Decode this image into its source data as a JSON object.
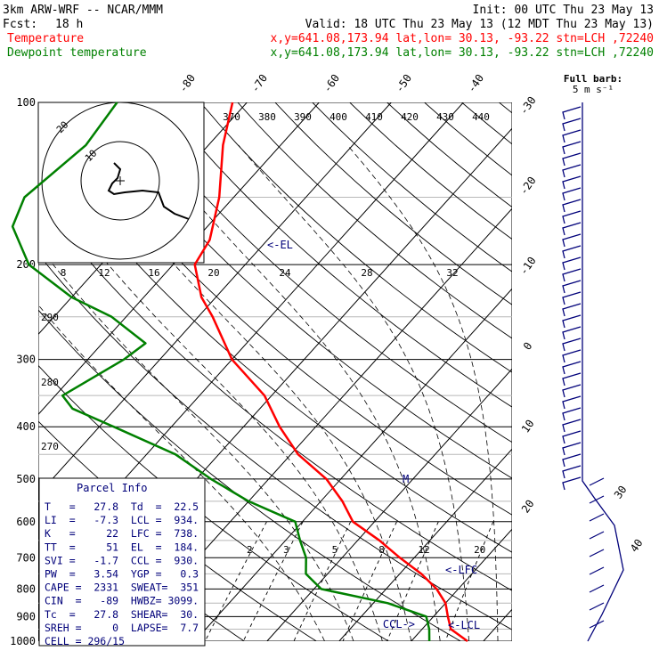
{
  "header": {
    "line1_left": "3km ARW-WRF -- NCAR/MMM",
    "line1_right": "Init: 00 UTC Thu 23 May 13",
    "fcst_label": "Fcst:",
    "fcst_value": "18 h",
    "valid": "Valid: 18 UTC Thu 23 May 13 (12 MDT Thu 23 May 13)",
    "temp_label": "Temperature",
    "temp_info": "x,y=641.08,173.94   lat,lon= 30.13, -93.22  stn=LCH ,72240",
    "dew_label": "Dewpoint temperature",
    "dew_info": "x,y=641.08,173.94   lat,lon= 30.13, -93.22  stn=LCH ,72240",
    "barb_title_1": "Full barb:",
    "barb_title_2": "5 m s⁻¹"
  },
  "colors": {
    "temperature": "#ff0000",
    "dewpoint": "#008000",
    "info": "#00007a",
    "grid": "#000000"
  },
  "chart_data": {
    "type": "line",
    "title": "",
    "xlabel": "",
    "ylabel": "",
    "pressure_levels": [
      100,
      200,
      300,
      400,
      500,
      600,
      700,
      800,
      900,
      1000
    ],
    "pressure_labels": [
      "100",
      "200",
      "300",
      "400",
      "500",
      "600",
      "700",
      "800",
      "900",
      "1000"
    ],
    "ylim": [
      100,
      1000
    ],
    "isotherm_labels": [
      {
        "t": -80,
        "text": "-80"
      },
      {
        "t": -70,
        "text": "-70"
      },
      {
        "t": -60,
        "text": "-60"
      },
      {
        "t": -50,
        "text": "-50"
      },
      {
        "t": -40,
        "text": "-40"
      },
      {
        "t": -30,
        "text": "-30"
      },
      {
        "t": -20,
        "text": "-20"
      },
      {
        "t": -10,
        "text": "-10"
      },
      {
        "t": 0,
        "text": "0"
      },
      {
        "t": 10,
        "text": "10"
      },
      {
        "t": 20,
        "text": "20"
      },
      {
        "t": 30,
        "text": "30"
      },
      {
        "t": 40,
        "text": "40"
      }
    ],
    "theta_labels": [
      "370",
      "380",
      "390",
      "400",
      "410",
      "420",
      "430",
      "440"
    ],
    "mixing_ratio_labels": [
      "2",
      "3",
      "5",
      "8",
      "12",
      "20"
    ],
    "dry_adiabat_labels": [
      "290",
      "280",
      "270"
    ],
    "hodograph": {
      "ring_labels": [
        "10",
        "20"
      ],
      "speed_axis_label": "kts",
      "speed_ticks": [
        "8",
        "12",
        "16",
        "20",
        "24",
        "28",
        "32"
      ]
    },
    "series": [
      {
        "name": "Temperature",
        "points": [
          [
            100,
            -72
          ],
          [
            120,
            -68
          ],
          [
            150,
            -62
          ],
          [
            180,
            -58
          ],
          [
            200,
            -57
          ],
          [
            230,
            -52
          ],
          [
            250,
            -48
          ],
          [
            300,
            -40
          ],
          [
            350,
            -31
          ],
          [
            400,
            -25
          ],
          [
            450,
            -19
          ],
          [
            500,
            -12
          ],
          [
            550,
            -7
          ],
          [
            600,
            -3
          ],
          [
            650,
            3
          ],
          [
            700,
            8
          ],
          [
            750,
            13
          ],
          [
            800,
            17
          ],
          [
            850,
            20
          ],
          [
            900,
            22
          ],
          [
            950,
            24
          ],
          [
            1000,
            27.8
          ]
        ]
      },
      {
        "name": "Dewpoint temperature",
        "points": [
          [
            100,
            -88
          ],
          [
            120,
            -87
          ],
          [
            150,
            -89
          ],
          [
            170,
            -87
          ],
          [
            200,
            -80
          ],
          [
            230,
            -70
          ],
          [
            250,
            -62
          ],
          [
            280,
            -54
          ],
          [
            300,
            -55
          ],
          [
            350,
            -59
          ],
          [
            370,
            -56
          ],
          [
            400,
            -48
          ],
          [
            450,
            -36
          ],
          [
            500,
            -28
          ],
          [
            550,
            -20
          ],
          [
            600,
            -11
          ],
          [
            650,
            -8
          ],
          [
            700,
            -5
          ],
          [
            750,
            -3
          ],
          [
            800,
            1
          ],
          [
            850,
            12
          ],
          [
            900,
            19
          ],
          [
            950,
            21
          ],
          [
            1000,
            22.5
          ]
        ]
      }
    ],
    "annotations": [
      {
        "text": "<-EL",
        "p": 184
      },
      {
        "text": "<-LFC",
        "p": 738
      },
      {
        "text": "<-LCL",
        "p": 934
      },
      {
        "text": "CCL->",
        "p": 930
      },
      {
        "text": "M",
        "p": 500
      }
    ]
  },
  "parcel_info": {
    "title": "Parcel Info",
    "rows": [
      "T   =   27.8  Td  =  22.5",
      "LI  =   -7.3  LCL =  934.",
      "K   =     22  LFC =  738.",
      "TT  =     51  EL  =  184.",
      "SVI =   -1.7  CCL =  930.",
      "PW  =   3.54  YGP =   0.3",
      "CAPE =  2331  SWEAT=  351",
      "CIN  =   -89  HWBZ= 3099.",
      "Tc  =   27.8  SHEAR=  30.",
      "SREH =     0  LAPSE=  7.7",
      "CELL = 296/15"
    ]
  }
}
